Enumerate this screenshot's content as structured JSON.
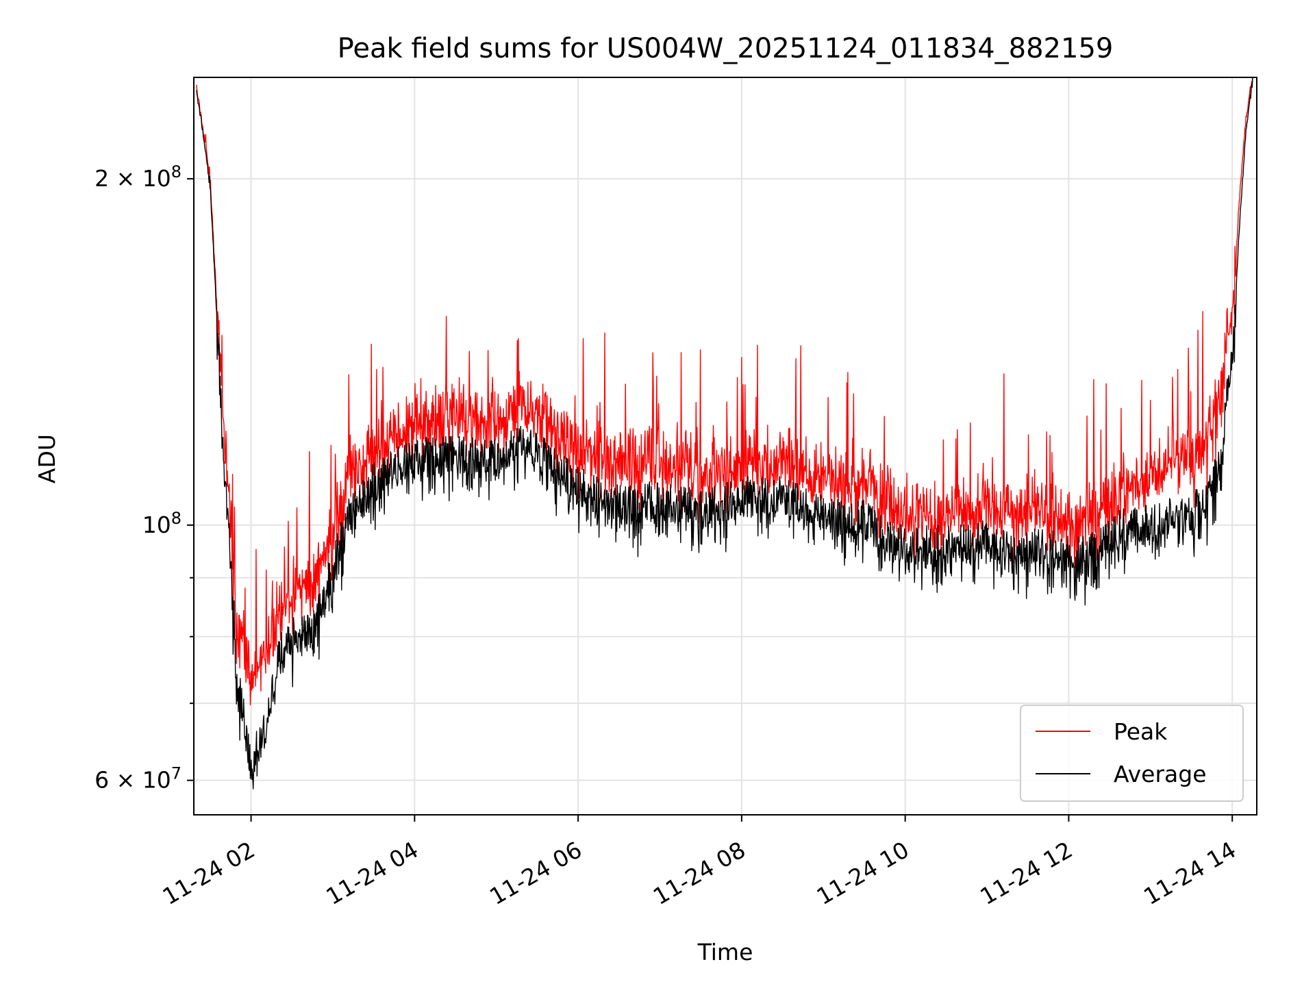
{
  "chart_data": {
    "type": "line",
    "title": "Peak field sums for US004W_20251124_011834_882159",
    "xlabel": "Time",
    "ylabel": "ADU",
    "y_scale": "log",
    "ylim": [
      56000000,
      245000000
    ],
    "xlim": [
      "2025-11-24 01:18",
      "2025-11-24 14:18"
    ],
    "grid": true,
    "legend_position": "lower-right",
    "x_ticks": [
      {
        "t": "2025-11-24 02:00",
        "label": "11-24 02"
      },
      {
        "t": "2025-11-24 04:00",
        "label": "11-24 04"
      },
      {
        "t": "2025-11-24 06:00",
        "label": "11-24 06"
      },
      {
        "t": "2025-11-24 08:00",
        "label": "11-24 08"
      },
      {
        "t": "2025-11-24 10:00",
        "label": "11-24 10"
      },
      {
        "t": "2025-11-24 12:00",
        "label": "11-24 12"
      },
      {
        "t": "2025-11-24 14:00",
        "label": "11-24 14"
      }
    ],
    "y_ticks_major": [
      {
        "value": 60000000,
        "label_mantissa": "6",
        "label_exp": "7"
      },
      {
        "value": 100000000,
        "label_mantissa": "",
        "label_exp": "8"
      },
      {
        "value": 200000000,
        "label_mantissa": "2",
        "label_exp": "8"
      }
    ],
    "y_ticks_minor": [
      70000000,
      80000000,
      90000000
    ],
    "x": [
      "2025-11-24 01:20",
      "2025-11-24 01:30",
      "2025-11-24 01:40",
      "2025-11-24 01:50",
      "2025-11-24 02:00",
      "2025-11-24 02:10",
      "2025-11-24 02:20",
      "2025-11-24 02:30",
      "2025-11-24 02:45",
      "2025-11-24 03:00",
      "2025-11-24 03:15",
      "2025-11-24 03:30",
      "2025-11-24 04:00",
      "2025-11-24 04:30",
      "2025-11-24 05:00",
      "2025-11-24 05:20",
      "2025-11-24 05:40",
      "2025-11-24 06:00",
      "2025-11-24 06:30",
      "2025-11-24 07:00",
      "2025-11-24 07:30",
      "2025-11-24 08:00",
      "2025-11-24 08:30",
      "2025-11-24 09:00",
      "2025-11-24 09:30",
      "2025-11-24 09:45",
      "2025-11-24 10:00",
      "2025-11-24 10:30",
      "2025-11-24 11:00",
      "2025-11-24 11:20",
      "2025-11-24 11:40",
      "2025-11-24 12:00",
      "2025-11-24 12:15",
      "2025-11-24 12:30",
      "2025-11-24 12:45",
      "2025-11-24 13:00",
      "2025-11-24 13:20",
      "2025-11-24 13:40",
      "2025-11-24 13:50",
      "2025-11-24 14:00",
      "2025-11-24 14:05",
      "2025-11-24 14:10",
      "2025-11-24 14:15"
    ],
    "series": [
      {
        "name": "Peak",
        "color": "#ff0000",
        "values": [
          240000000,
          200000000,
          118000000,
          80000000,
          72000000,
          74000000,
          82000000,
          85000000,
          86000000,
          97000000,
          109000000,
          113000000,
          119000000,
          121000000,
          119000000,
          126000000,
          118000000,
          113000000,
          110000000,
          111000000,
          108000000,
          110000000,
          111000000,
          106000000,
          106000000,
          103000000,
          100000000,
          100000000,
          101000000,
          99000000,
          101000000,
          98000000,
          98000000,
          103000000,
          105000000,
          108000000,
          110000000,
          114000000,
          124000000,
          150000000,
          190000000,
          225000000,
          245000000
        ]
      },
      {
        "name": "Average",
        "color": "#000000",
        "values": [
          240000000,
          198000000,
          115000000,
          74000000,
          62000000,
          66000000,
          78000000,
          80000000,
          81000000,
          92000000,
          104000000,
          109000000,
          115000000,
          115000000,
          114000000,
          120000000,
          113000000,
          108000000,
          104000000,
          105000000,
          103000000,
          106000000,
          106000000,
          102000000,
          101000000,
          98000000,
          96000000,
          96000000,
          97000000,
          94000000,
          96000000,
          94000000,
          94000000,
          98000000,
          100000000,
          100000000,
          102000000,
          104000000,
          112000000,
          140000000,
          180000000,
          220000000,
          245000000
        ]
      }
    ]
  }
}
